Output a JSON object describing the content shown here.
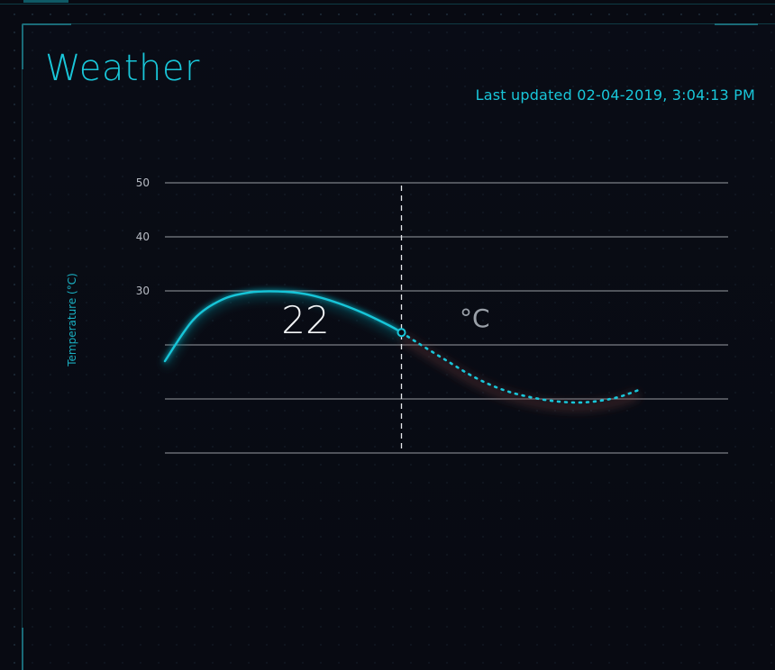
{
  "header": {
    "title": "Weather",
    "last_updated": "Last updated 02-04-2019, 3:04:13 PM"
  },
  "current": {
    "value": "22",
    "unit": "°C"
  },
  "colors": {
    "accent": "#19c6d9",
    "background": "#080a12",
    "gridline": "#c8ccd2"
  },
  "chart_data": {
    "type": "line",
    "ylabel": "Temperature (°C)",
    "ylim": [
      0,
      50
    ],
    "yticks": [
      0,
      10,
      20,
      30,
      40,
      50
    ],
    "ytick_labels": [
      "",
      "",
      "",
      "30",
      "40",
      "50"
    ],
    "grid": true,
    "series": [
      {
        "style": "solid",
        "values": [
          {
            "x": 0.0,
            "y": 17
          },
          {
            "x": 0.5,
            "y": 24.6
          },
          {
            "x": 1.0,
            "y": 28.3
          },
          {
            "x": 1.5,
            "y": 29.7
          },
          {
            "x": 2.0,
            "y": 29.9
          },
          {
            "x": 2.5,
            "y": 29.4
          },
          {
            "x": 3.0,
            "y": 28.0
          },
          {
            "x": 3.5,
            "y": 26.0
          },
          {
            "x": 4.0,
            "y": 23.5
          },
          {
            "x": 4.2,
            "y": 22.3
          }
        ]
      },
      {
        "style": "dotted",
        "values": [
          {
            "x": 4.2,
            "y": 22.3
          },
          {
            "x": 4.5,
            "y": 20.3
          },
          {
            "x": 5.0,
            "y": 17.1
          },
          {
            "x": 5.5,
            "y": 14.0
          },
          {
            "x": 6.0,
            "y": 11.7
          },
          {
            "x": 6.5,
            "y": 10.3
          },
          {
            "x": 7.0,
            "y": 9.5
          },
          {
            "x": 7.5,
            "y": 9.4
          },
          {
            "x": 8.0,
            "y": 10.2
          },
          {
            "x": 8.4,
            "y": 11.6
          }
        ]
      }
    ],
    "current_marker": {
      "x": 4.2,
      "y": 22.3
    }
  }
}
